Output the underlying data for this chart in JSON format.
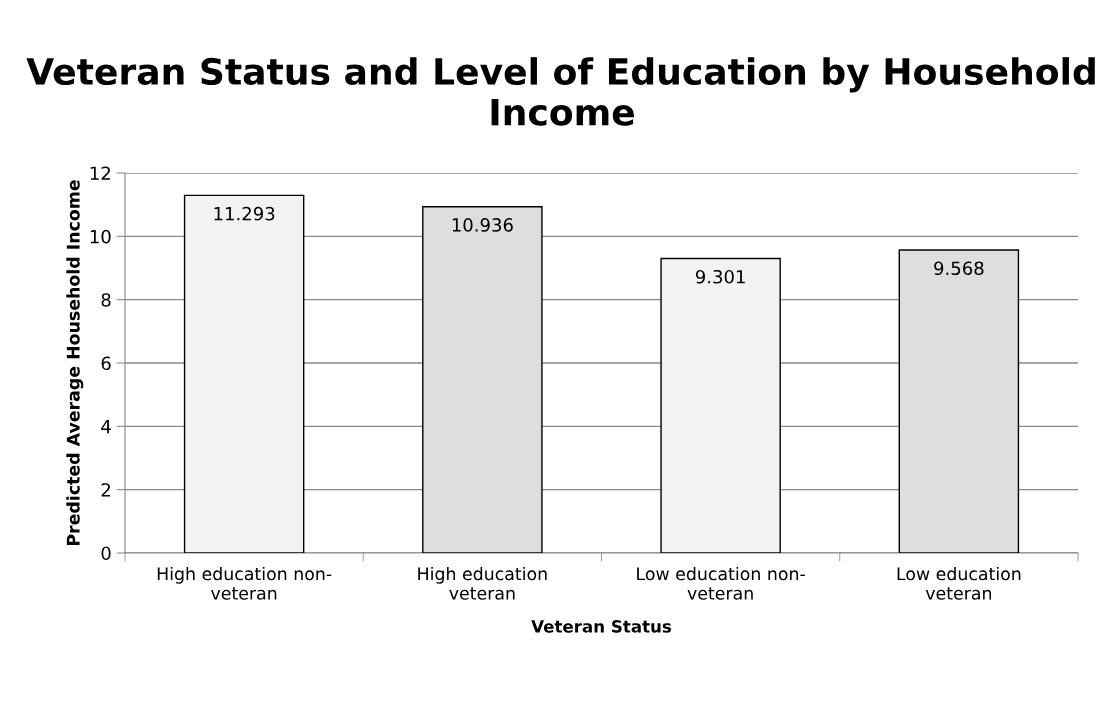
{
  "chart_data": {
    "type": "bar",
    "title": "Veteran Status and Level of Education by Household Income",
    "xlabel": "Veteran Status",
    "ylabel": "Predicted Average Household Income",
    "categories": [
      "High education non-\nveteran",
      "High education\nveteran",
      "Low education non-\nveteran",
      "Low education\nveteran"
    ],
    "values": [
      11.293,
      10.936,
      9.301,
      9.568
    ],
    "colors": [
      "#f2f2f2",
      "#dedede",
      "#f2f2f2",
      "#dedede"
    ],
    "ylim": [
      0,
      12
    ],
    "yticks": [
      0,
      2,
      4,
      6,
      8,
      10,
      12
    ],
    "grid": "y",
    "data_labels": true,
    "legend": false
  }
}
